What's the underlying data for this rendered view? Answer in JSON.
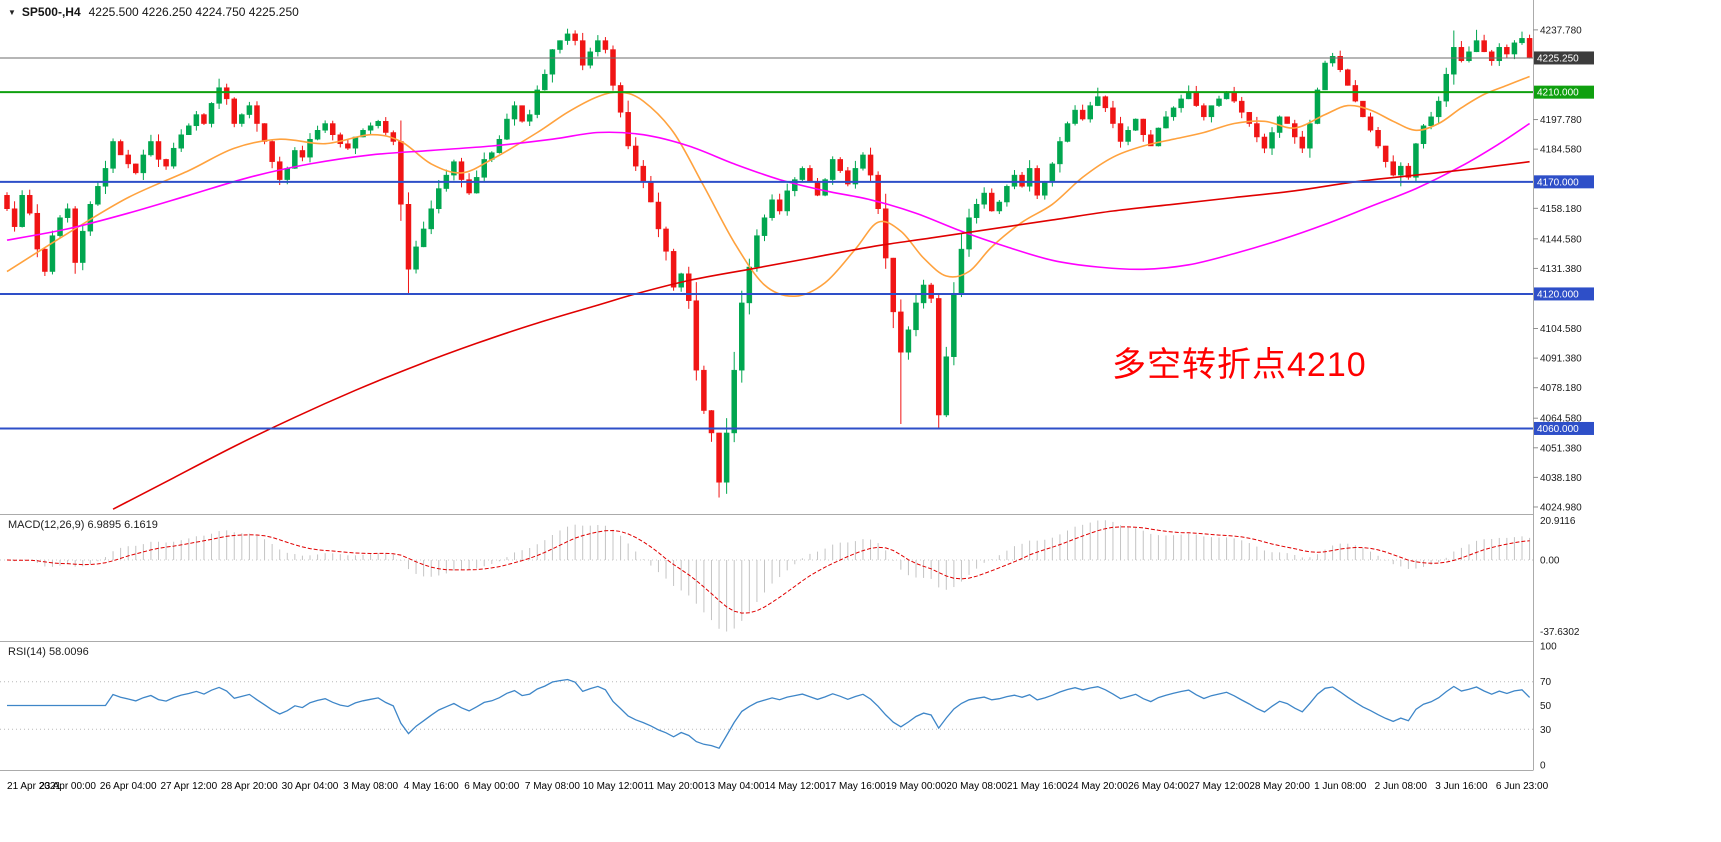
{
  "header": {
    "symbol": "SP500-,H4",
    "ohlc": "4225.500 4226.250 4224.750 4225.250"
  },
  "annotation": {
    "text": "多空转折点4210",
    "color": "#FF0000"
  },
  "indicators": {
    "macd": {
      "label": "MACD(12,26,9) 6.9895 6.1619"
    },
    "rsi": {
      "label": "RSI(14) 58.0096"
    }
  },
  "chart_data": {
    "type": "candlestick",
    "symbol": "SP500-",
    "timeframe": "H4",
    "ohlc_current": {
      "open": 4225.5,
      "high": 4226.25,
      "low": 4224.75,
      "close": 4225.25
    },
    "ylim": [
      4021.85,
      4251.1
    ],
    "price_ticks": [
      {
        "value": 4237.78,
        "label": "4237.780"
      },
      {
        "value": 4197.78,
        "label": "4197.780"
      },
      {
        "value": 4184.58,
        "label": "4184.580"
      },
      {
        "value": 4158.18,
        "label": "4158.180"
      },
      {
        "value": 4144.58,
        "label": "4144.580"
      },
      {
        "value": 4131.38,
        "label": "4131.380"
      },
      {
        "value": 4104.58,
        "label": "4104.580"
      },
      {
        "value": 4091.38,
        "label": "4091.380"
      },
      {
        "value": 4078.18,
        "label": "4078.180"
      },
      {
        "value": 4064.58,
        "label": "4064.580"
      },
      {
        "value": 4051.38,
        "label": "4051.380"
      },
      {
        "value": 4038.18,
        "label": "4038.180"
      },
      {
        "value": 4024.98,
        "label": "4024.980"
      }
    ],
    "levels": [
      {
        "value": 4225.25,
        "label": "4225.250",
        "line_color": "#6E6E6E",
        "badge_color": "#3C3C3C",
        "width": 1,
        "name": "current-price-line"
      },
      {
        "value": 4210.0,
        "label": "4210.000",
        "line_color": "#0FA00F",
        "badge_color": "#0FA00F",
        "width": 2,
        "name": "pivot-line-4210"
      },
      {
        "value": 4170.0,
        "label": "4170.000",
        "line_color": "#2E4FC8",
        "badge_color": "#2E4FC8",
        "width": 2,
        "name": "support-line-4170"
      },
      {
        "value": 4120.0,
        "label": "4120.000",
        "line_color": "#2E4FC8",
        "badge_color": "#2E4FC8",
        "width": 2,
        "name": "support-line-4120"
      },
      {
        "value": 4060.0,
        "label": "4060.000",
        "line_color": "#2E4FC8",
        "badge_color": "#2E4FC8",
        "width": 2,
        "name": "support-line-4060"
      }
    ],
    "time_labels": [
      "21 Apr 2021",
      "23 Apr 00:00",
      "26 Apr 04:00",
      "27 Apr 12:00",
      "28 Apr 20:00",
      "30 Apr 04:00",
      "3 May 08:00",
      "4 May 16:00",
      "6 May 00:00",
      "7 May 08:00",
      "10 May 12:00",
      "11 May 20:00",
      "13 May 04:00",
      "14 May 12:00",
      "17 May 16:00",
      "19 May 00:00",
      "20 May 08:00",
      "21 May 16:00",
      "24 May 20:00",
      "26 May 04:00",
      "27 May 12:00",
      "28 May 20:00",
      "1 Jun 08:00",
      "2 Jun 08:00",
      "3 Jun 16:00",
      "6 Jun 23:00"
    ],
    "bars_per_label": 8,
    "closes": [
      4158,
      4150,
      4164,
      4156,
      4140,
      4130,
      4146,
      4154,
      4158,
      4134,
      4148,
      4160,
      4168,
      4176,
      4188,
      4182,
      4178,
      4174,
      4182,
      4188,
      4180,
      4177,
      4185,
      4191,
      4195,
      4200,
      4196,
      4205,
      4212,
      4207,
      4196,
      4200,
      4204,
      4196,
      4188,
      4179,
      4171,
      4176,
      4184,
      4181,
      4189,
      4193,
      4196,
      4191,
      4187,
      4185,
      4190,
      4193,
      4195,
      4197,
      4192,
      4188,
      4160,
      4131,
      4141,
      4149,
      4158,
      4167,
      4173,
      4179,
      4171,
      4165,
      4172,
      4180,
      4183,
      4189,
      4198,
      4204,
      4197,
      4200,
      4211,
      4218,
      4229,
      4233,
      4236,
      4233,
      4222,
      4228,
      4233,
      4229,
      4213,
      4201,
      4186,
      4177,
      4170,
      4161,
      4149,
      4139,
      4123,
      4129,
      4117,
      4086,
      4068,
      4058,
      4036,
      4058,
      4086,
      4116,
      4132,
      4146,
      4154,
      4162,
      4157,
      4166,
      4171,
      4176,
      4170,
      4164,
      4171,
      4180,
      4175,
      4169,
      4176,
      4182,
      4173,
      4158,
      4136,
      4112,
      4094,
      4104,
      4116,
      4124,
      4118,
      4066,
      4092,
      4120,
      4140,
      4154,
      4160,
      4165,
      4157,
      4161,
      4168,
      4173,
      4168,
      4176,
      4164,
      4170,
      4178,
      4188,
      4196,
      4202,
      4198,
      4204,
      4208,
      4203,
      4196,
      4188,
      4193,
      4198,
      4191,
      4186,
      4194,
      4199,
      4203,
      4207,
      4210,
      4204,
      4199,
      4204,
      4207,
      4210,
      4206,
      4201,
      4196,
      4190,
      4185,
      4192,
      4199,
      4196,
      4190,
      4185,
      4196,
      4211,
      4223,
      4226,
      4220,
      4213,
      4206,
      4199,
      4193,
      4186,
      4179,
      4173,
      4177,
      4172,
      4187,
      4195,
      4199,
      4206,
      4218,
      4230,
      4224,
      4228,
      4233,
      4228,
      4224,
      4230,
      4227,
      4232,
      4234,
      4225.25
    ],
    "wick_overrides": {
      "5": {
        "low": 4128
      },
      "9": {
        "low": 4129
      },
      "28": {
        "high": 4216
      },
      "53": {
        "low": 4120
      },
      "74": {
        "high": 4238.3
      },
      "94": {
        "low": 4029.2
      },
      "118": {
        "low": 4062
      },
      "123": {
        "low": 4060
      },
      "144": {
        "high": 4212
      },
      "156": {
        "high": 4213
      },
      "175": {
        "high": 4227.5
      },
      "184": {
        "low": 4168
      },
      "191": {
        "high": 4237.5
      },
      "194": {
        "high": 4237.8
      },
      "200": {
        "high": 4237
      }
    },
    "colors": {
      "up": "#00A64F",
      "down": "#F01414",
      "ma_fast": "#FFA23E",
      "ma_mid": "#FF00FF",
      "ma_slow": "#E00000",
      "macd_hist": "#C4C4C4",
      "macd_signal": "#E00000",
      "rsi_line": "#3E86C8",
      "separator": "#ABABAB",
      "axis_text": "#1a1a1a"
    },
    "ma_lines": [
      {
        "name": "fast-ma-orange",
        "color_key": "ma_fast",
        "points": [
          [
            0,
            4130
          ],
          [
            8,
            4147
          ],
          [
            16,
            4163
          ],
          [
            24,
            4175
          ],
          [
            30,
            4185
          ],
          [
            36,
            4189
          ],
          [
            42,
            4187
          ],
          [
            48,
            4191
          ],
          [
            52,
            4188
          ],
          [
            56,
            4178
          ],
          [
            60,
            4174
          ],
          [
            64,
            4180
          ],
          [
            70,
            4192
          ],
          [
            74,
            4201
          ],
          [
            78,
            4208
          ],
          [
            81,
            4210
          ],
          [
            84,
            4206
          ],
          [
            88,
            4192
          ],
          [
            92,
            4168
          ],
          [
            96,
            4143
          ],
          [
            100,
            4124
          ],
          [
            104,
            4119
          ],
          [
            108,
            4125
          ],
          [
            112,
            4140
          ],
          [
            115,
            4152
          ],
          [
            118,
            4148
          ],
          [
            121,
            4136
          ],
          [
            124,
            4128
          ],
          [
            127,
            4130
          ],
          [
            130,
            4141
          ],
          [
            134,
            4152
          ],
          [
            138,
            4160
          ],
          [
            142,
            4172
          ],
          [
            146,
            4181
          ],
          [
            150,
            4186
          ],
          [
            154,
            4189
          ],
          [
            158,
            4192
          ],
          [
            162,
            4196
          ],
          [
            166,
            4197
          ],
          [
            170,
            4194
          ],
          [
            174,
            4200
          ],
          [
            177,
            4204
          ],
          [
            180,
            4202
          ],
          [
            183,
            4197
          ],
          [
            186,
            4193
          ],
          [
            189,
            4196
          ],
          [
            192,
            4203
          ],
          [
            195,
            4209
          ],
          [
            198,
            4213
          ],
          [
            201,
            4217
          ]
        ]
      },
      {
        "name": "mid-ma-magenta",
        "color_key": "ma_mid",
        "points": [
          [
            0,
            4144
          ],
          [
            8,
            4149
          ],
          [
            16,
            4156
          ],
          [
            24,
            4164
          ],
          [
            32,
            4172
          ],
          [
            40,
            4178
          ],
          [
            48,
            4182
          ],
          [
            56,
            4184
          ],
          [
            64,
            4186
          ],
          [
            72,
            4189
          ],
          [
            78,
            4192
          ],
          [
            84,
            4191
          ],
          [
            90,
            4186
          ],
          [
            96,
            4178
          ],
          [
            102,
            4171
          ],
          [
            108,
            4166
          ],
          [
            114,
            4162
          ],
          [
            120,
            4156
          ],
          [
            126,
            4148
          ],
          [
            132,
            4141
          ],
          [
            138,
            4135
          ],
          [
            144,
            4132
          ],
          [
            150,
            4131
          ],
          [
            156,
            4133
          ],
          [
            162,
            4138
          ],
          [
            168,
            4144
          ],
          [
            174,
            4151
          ],
          [
            180,
            4159
          ],
          [
            186,
            4167
          ],
          [
            192,
            4177
          ],
          [
            197,
            4187
          ],
          [
            201,
            4196
          ]
        ]
      },
      {
        "name": "slow-ma-red",
        "color_key": "ma_slow",
        "points": [
          [
            14,
            4024
          ],
          [
            22,
            4038
          ],
          [
            30,
            4052
          ],
          [
            38,
            4065
          ],
          [
            46,
            4077
          ],
          [
            54,
            4088
          ],
          [
            62,
            4098
          ],
          [
            70,
            4107
          ],
          [
            78,
            4115
          ],
          [
            83,
            4120
          ],
          [
            90,
            4126
          ],
          [
            98,
            4131
          ],
          [
            106,
            4136
          ],
          [
            114,
            4141
          ],
          [
            122,
            4145
          ],
          [
            130,
            4149
          ],
          [
            138,
            4153
          ],
          [
            146,
            4157
          ],
          [
            154,
            4160
          ],
          [
            162,
            4163
          ],
          [
            170,
            4166
          ],
          [
            178,
            4170
          ],
          [
            186,
            4173
          ],
          [
            194,
            4176
          ],
          [
            201,
            4179
          ]
        ]
      }
    ],
    "macd": {
      "fast": 12,
      "slow": 26,
      "signal": 9,
      "display_values": [
        6.9895,
        6.1619
      ],
      "scale_points": [
        {
          "v": 20.9116,
          "label": "20.9116"
        },
        {
          "v": 0,
          "label": "0.00"
        },
        {
          "v": -37.6302,
          "label": "-37.6302"
        }
      ]
    },
    "rsi": {
      "period": 14,
      "display_value": 58.0096,
      "scale_points": [
        {
          "v": 100,
          "label": "100"
        },
        {
          "v": 70,
          "label": "70"
        },
        {
          "v": 50,
          "label": "50"
        },
        {
          "v": 30,
          "label": "30"
        },
        {
          "v": 0,
          "label": "0"
        }
      ],
      "guide_levels": [
        70,
        30
      ]
    }
  }
}
